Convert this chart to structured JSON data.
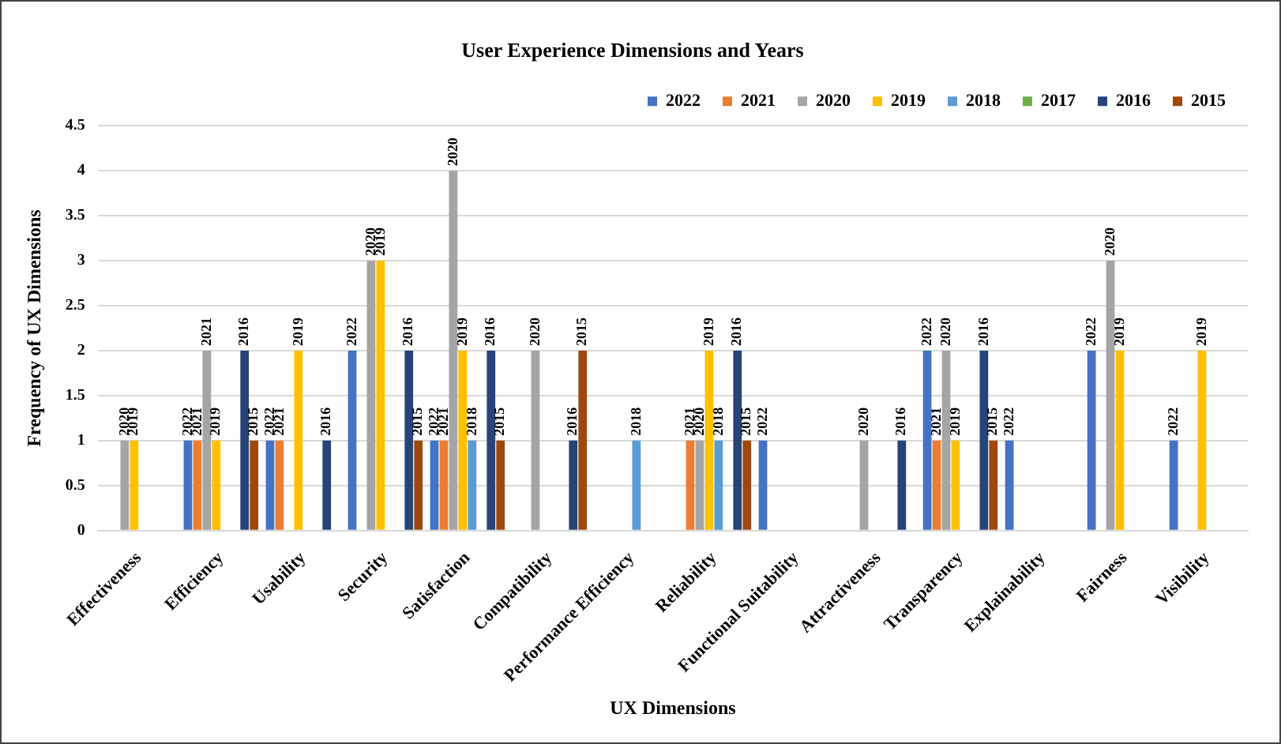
{
  "chart_data": {
    "type": "bar",
    "title": "User Experience Dimensions and Years",
    "xlabel": "UX Dimensions",
    "ylabel": "Frequency of UX Dimensions",
    "categories": [
      "Effectiveness",
      "Efficiency",
      "Usability",
      "Security",
      "Satisfaction",
      "Compatibility",
      "Performance Efficiency",
      "Reliability",
      "Functional Suitability",
      "Attractiveness",
      "Transparency",
      "Explainability",
      "Fairness",
      "Visibility"
    ],
    "series": [
      {
        "name": "2022",
        "color": "#4472c4",
        "values": [
          null,
          1,
          1,
          2,
          1,
          null,
          null,
          null,
          1,
          null,
          2,
          1,
          2,
          1
        ]
      },
      {
        "name": "2021",
        "color": "#ed7d31",
        "values": [
          null,
          1,
          1,
          null,
          1,
          null,
          null,
          1,
          null,
          null,
          1,
          null,
          null,
          null
        ]
      },
      {
        "name": "2020",
        "color": "#a5a5a5",
        "values": [
          1,
          2,
          null,
          3,
          4,
          2,
          null,
          1,
          null,
          1,
          2,
          null,
          3,
          null
        ]
      },
      {
        "name": "2019",
        "color": "#ffc000",
        "values": [
          1,
          1,
          2,
          3,
          2,
          null,
          null,
          2,
          null,
          null,
          1,
          null,
          2,
          2
        ]
      },
      {
        "name": "2018",
        "color": "#5b9bd5",
        "values": [
          null,
          null,
          null,
          null,
          1,
          null,
          1,
          1,
          null,
          null,
          null,
          null,
          null,
          null
        ]
      },
      {
        "name": "2017",
        "color": "#70ad47",
        "values": [
          null,
          null,
          null,
          null,
          null,
          null,
          null,
          null,
          null,
          null,
          null,
          null,
          null,
          null
        ]
      },
      {
        "name": "2016",
        "color": "#264478",
        "values": [
          null,
          2,
          1,
          2,
          2,
          1,
          null,
          2,
          null,
          1,
          2,
          null,
          null,
          null
        ]
      },
      {
        "name": "2015",
        "color": "#9e480e",
        "values": [
          null,
          1,
          null,
          1,
          1,
          2,
          null,
          1,
          null,
          null,
          1,
          null,
          null,
          null
        ]
      }
    ],
    "annotations": [
      "2020",
      "2019",
      "2022",
      "2021",
      "2021",
      "2019",
      "2016",
      "2015",
      "2022",
      "2021",
      "2019",
      "2016",
      "2022",
      "2020",
      "2019",
      "2016",
      "2015",
      "2022",
      "2021",
      "2020",
      "2019",
      "2018",
      "2016",
      "2015",
      "2020",
      "2016",
      "2015",
      "2018",
      "2021",
      "2020",
      "2019",
      "2018",
      "2016",
      "2015",
      "2022",
      "2020",
      "2016",
      "2022",
      "2021",
      "2020",
      "2019",
      "2016",
      "2015",
      "2022",
      "2022",
      "2020",
      "2019",
      "2022",
      "2019"
    ],
    "ylim": [
      0,
      4.5
    ],
    "yticks": [
      0,
      0.5,
      1,
      1.5,
      2,
      2.5,
      3,
      3.5,
      4,
      4.5
    ],
    "grid": "y",
    "legend": "top right"
  }
}
